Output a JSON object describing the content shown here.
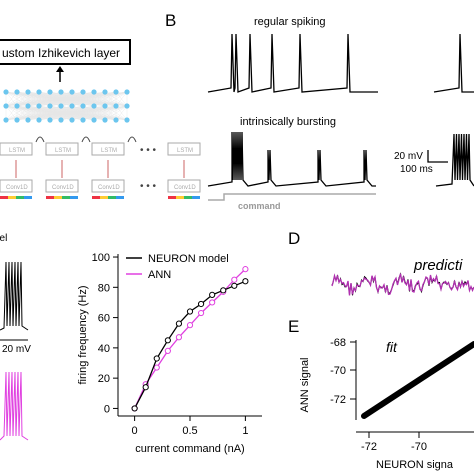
{
  "panels": {
    "a": {
      "layer_label": "ustom Izhikevich layer",
      "lstm_label": "LSTM",
      "conv_label": "Conv1D",
      "ellipsis": "• • •"
    },
    "b": {
      "letter": "B",
      "trace1_label": "regular spiking",
      "trace2_label": "intrinsically bursting",
      "scale_mv": "20 mV",
      "scale_ms": "100 ms",
      "command_label": "command"
    },
    "c": {
      "frag_top": "del",
      "frag_scale": "20 mV"
    },
    "d": {
      "letter": "D",
      "title": "predicti"
    },
    "e": {
      "letter": "E",
      "title": "fit",
      "ylabel": "ANN signal",
      "xlabel": "NEURON signa",
      "yticks": [
        "-68",
        "-70",
        "-72"
      ],
      "xticks": [
        "-72",
        "-70"
      ]
    }
  },
  "chart_data": {
    "type": "line",
    "title": "",
    "xlabel": "current command (nA)",
    "ylabel": "firing frequency (Hz)",
    "xlim": [
      -0.15,
      1.15
    ],
    "ylim": [
      -5,
      102
    ],
    "xticks": [
      0,
      0.5,
      1
    ],
    "yticks": [
      0,
      20,
      40,
      60,
      80,
      100
    ],
    "legend": "top-left",
    "grid": false,
    "series": [
      {
        "name": "NEURON model",
        "color": "#000000",
        "x": [
          0,
          0.1,
          0.2,
          0.3,
          0.4,
          0.5,
          0.6,
          0.7,
          0.8,
          0.9,
          1.0
        ],
        "y": [
          0,
          14,
          33,
          45,
          56,
          64,
          69,
          75,
          78,
          81,
          84
        ]
      },
      {
        "name": "ANN",
        "color": "#e040e0",
        "x": [
          0,
          0.1,
          0.2,
          0.3,
          0.4,
          0.5,
          0.6,
          0.7,
          0.8,
          0.9,
          1.0
        ],
        "y": [
          0,
          16,
          27,
          38,
          47,
          55,
          63,
          70,
          77,
          85,
          92
        ]
      }
    ]
  }
}
